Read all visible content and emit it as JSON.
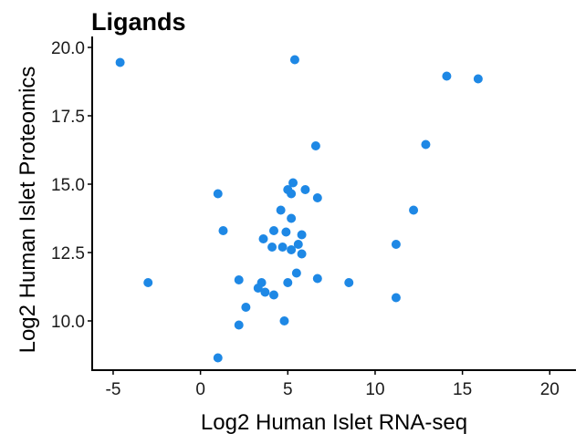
{
  "chart_data": {
    "type": "scatter",
    "title": "Ligands",
    "xlabel": "Log2 Human Islet RNA-seq",
    "ylabel": "Log2 Human Islet Proteomics",
    "xlim": [
      -6.2,
      21.5
    ],
    "ylim": [
      8.2,
      20.4
    ],
    "xticks": [
      -5,
      0,
      5,
      10,
      15,
      20
    ],
    "xtick_labels": [
      "-5",
      "0",
      "5",
      "10",
      "15",
      "20"
    ],
    "yticks": [
      10.0,
      12.5,
      15.0,
      17.5,
      20.0
    ],
    "ytick_labels": [
      "10.0",
      "12.5",
      "15.0",
      "17.5",
      "20.0"
    ],
    "grid": false,
    "marker_color": "#1E88E5",
    "points": [
      {
        "x": -4.6,
        "y": 19.45
      },
      {
        "x": 5.4,
        "y": 19.55
      },
      {
        "x": 14.1,
        "y": 18.95
      },
      {
        "x": 15.9,
        "y": 18.85
      },
      {
        "x": 12.9,
        "y": 16.45
      },
      {
        "x": 6.6,
        "y": 16.4
      },
      {
        "x": 5.3,
        "y": 15.05
      },
      {
        "x": 5.0,
        "y": 14.8
      },
      {
        "x": 5.2,
        "y": 14.65
      },
      {
        "x": 6.0,
        "y": 14.8
      },
      {
        "x": 6.7,
        "y": 14.5
      },
      {
        "x": 1.0,
        "y": 14.65
      },
      {
        "x": 4.6,
        "y": 14.05
      },
      {
        "x": 12.2,
        "y": 14.05
      },
      {
        "x": 5.2,
        "y": 13.75
      },
      {
        "x": 1.3,
        "y": 13.3
      },
      {
        "x": 4.2,
        "y": 13.3
      },
      {
        "x": 4.9,
        "y": 13.25
      },
      {
        "x": 5.8,
        "y": 13.15
      },
      {
        "x": 3.6,
        "y": 13.0
      },
      {
        "x": 5.6,
        "y": 12.8
      },
      {
        "x": 4.1,
        "y": 12.7
      },
      {
        "x": 4.7,
        "y": 12.7
      },
      {
        "x": 5.2,
        "y": 12.6
      },
      {
        "x": 5.8,
        "y": 12.45
      },
      {
        "x": 11.2,
        "y": 12.8
      },
      {
        "x": 5.5,
        "y": 11.75
      },
      {
        "x": 2.2,
        "y": 11.5
      },
      {
        "x": 6.7,
        "y": 11.55
      },
      {
        "x": -3.0,
        "y": 11.4
      },
      {
        "x": 3.5,
        "y": 11.4
      },
      {
        "x": 5.0,
        "y": 11.4
      },
      {
        "x": 8.5,
        "y": 11.4
      },
      {
        "x": 3.3,
        "y": 11.2
      },
      {
        "x": 3.7,
        "y": 11.05
      },
      {
        "x": 4.2,
        "y": 10.95
      },
      {
        "x": 11.2,
        "y": 10.85
      },
      {
        "x": 2.6,
        "y": 10.5
      },
      {
        "x": 4.8,
        "y": 10.0
      },
      {
        "x": 2.2,
        "y": 9.85
      },
      {
        "x": 1.0,
        "y": 8.65
      }
    ]
  }
}
